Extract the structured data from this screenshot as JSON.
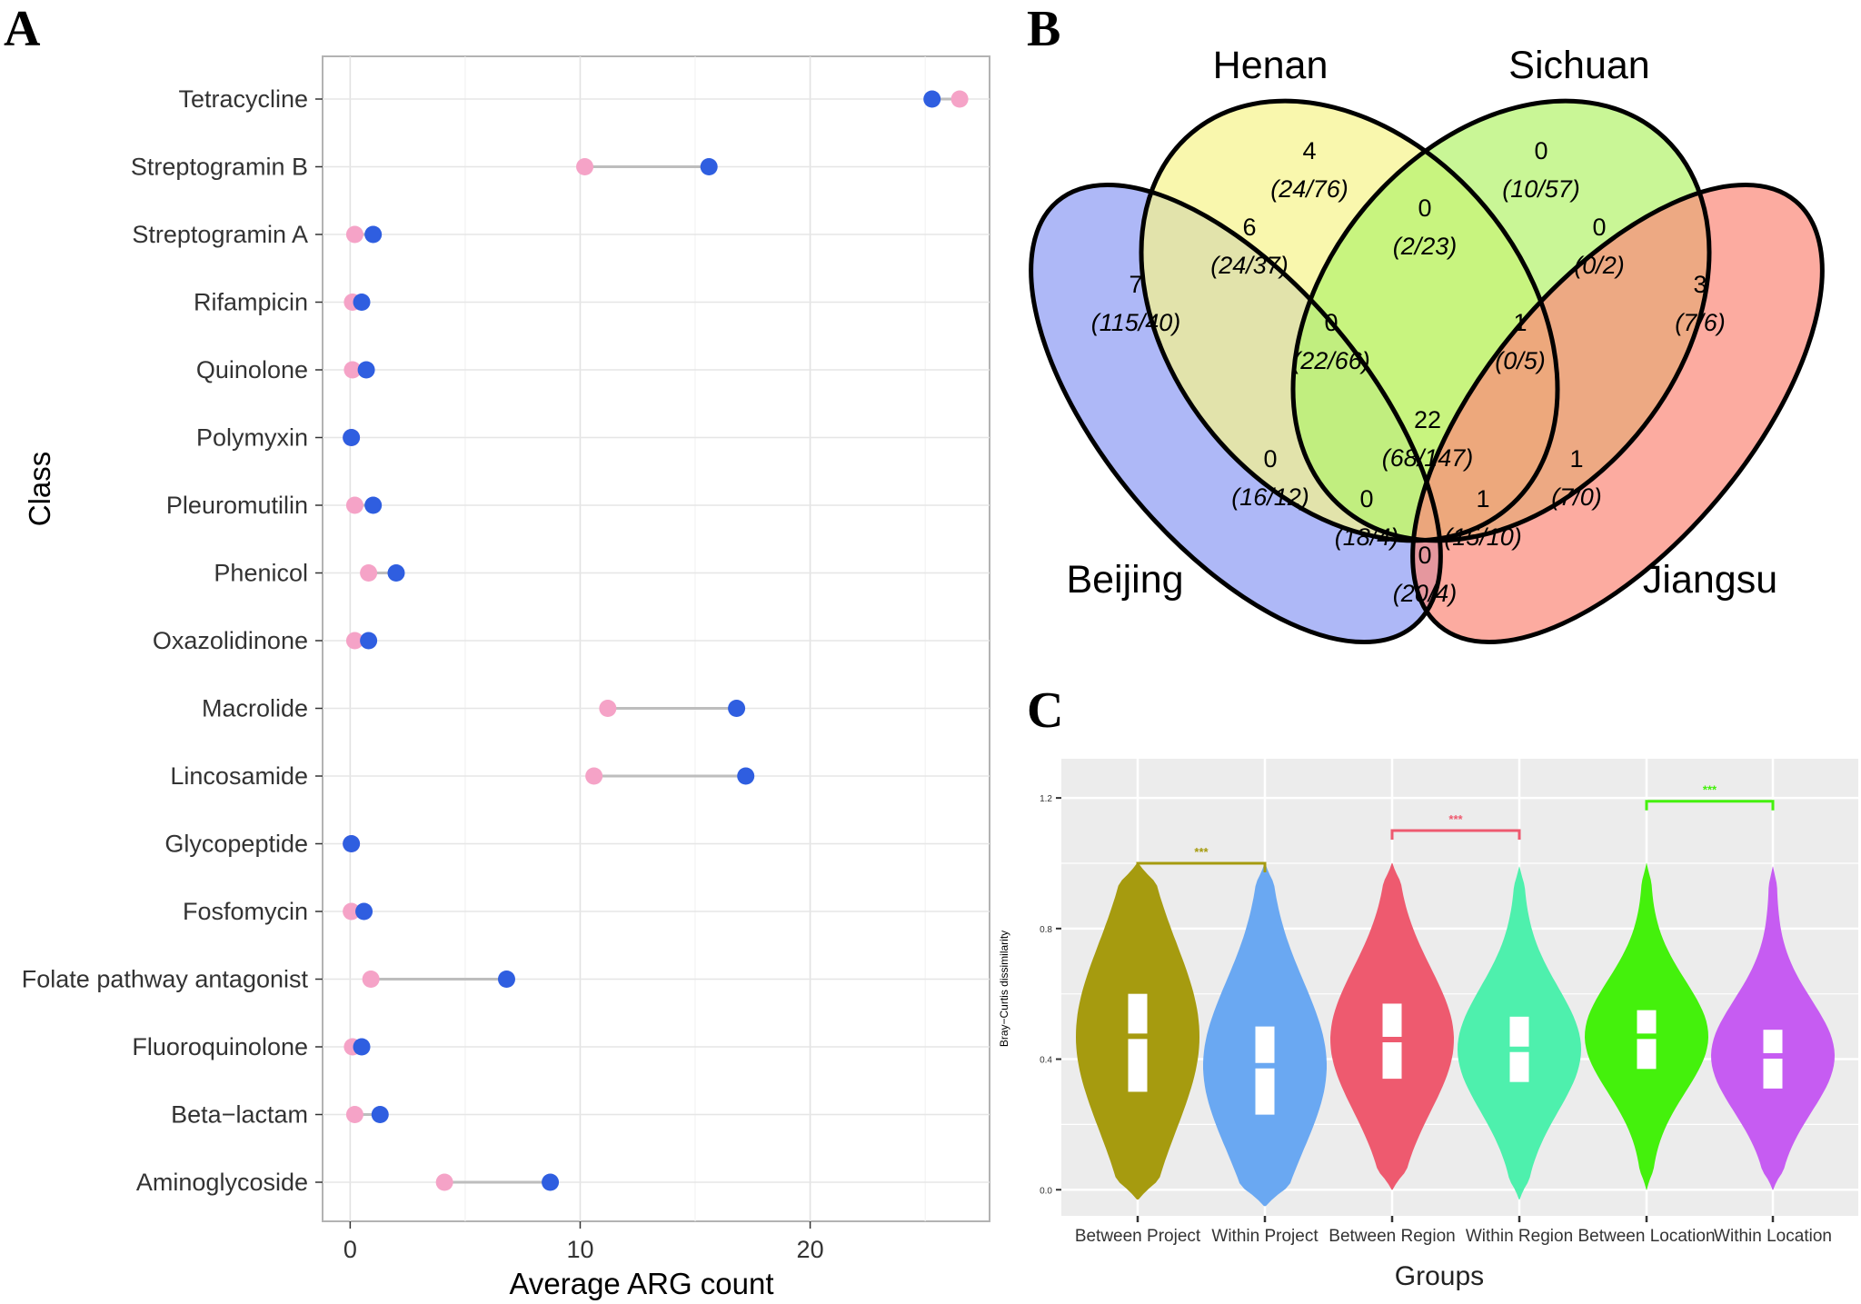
{
  "panels": {
    "a": "A",
    "b": "B",
    "c": "C"
  },
  "chart_data": [
    {
      "type": "scatter",
      "subtype": "dumbbell",
      "panel": "A",
      "xlabel": "Average ARG count",
      "ylabel": "Class",
      "xlim": [
        -1.2,
        27.8
      ],
      "xticks": [
        0,
        10,
        20
      ],
      "grid": true,
      "categories": [
        "Tetracycline",
        "Streptogramin B",
        "Streptogramin A",
        "Rifampicin",
        "Quinolone",
        "Polymyxin",
        "Pleuromutilin",
        "Phenicol",
        "Oxazolidinone",
        "Macrolide",
        "Lincosamide",
        "Glycopeptide",
        "Fosfomycin",
        "Folate pathway antagonist",
        "Fluoroquinolone",
        "Beta−lactam",
        "Aminoglycoside"
      ],
      "series": [
        {
          "name": "pink",
          "color": "#f5a3c7",
          "values": [
            26.5,
            10.2,
            0.2,
            0.1,
            0.1,
            0.05,
            0.2,
            0.8,
            0.2,
            11.2,
            10.6,
            0.05,
            0.05,
            0.9,
            0.1,
            0.2,
            4.1
          ]
        },
        {
          "name": "blue",
          "color": "#2f5ee0",
          "values": [
            25.3,
            15.6,
            1.0,
            0.5,
            0.7,
            0.05,
            1.0,
            2.0,
            0.8,
            16.8,
            17.2,
            0.05,
            0.6,
            6.8,
            0.5,
            1.3,
            8.7
          ]
        }
      ]
    },
    {
      "type": "venn",
      "panel": "B",
      "sets": [
        {
          "name": "Beijing",
          "color": "#8f9df4"
        },
        {
          "name": "Henan",
          "color": "#f7f48e"
        },
        {
          "name": "Sichuan",
          "color": "#b4f26e"
        },
        {
          "name": "Jiangsu",
          "color": "#fb8a7c"
        }
      ],
      "regions": [
        {
          "sets": "Beijing",
          "count": "7",
          "ratio": "(115/40)"
        },
        {
          "sets": "Henan",
          "count": "4",
          "ratio": "(24/76)"
        },
        {
          "sets": "Sichuan",
          "count": "0",
          "ratio": "(10/57)"
        },
        {
          "sets": "Jiangsu",
          "count": "3",
          "ratio": "(7/6)"
        },
        {
          "sets": "Beijing∩Henan",
          "count": "6",
          "ratio": "(24/37)"
        },
        {
          "sets": "Henan∩Sichuan",
          "count": "0",
          "ratio": "(2/23)"
        },
        {
          "sets": "Sichuan∩Jiangsu",
          "count": "0",
          "ratio": "(0/2)"
        },
        {
          "sets": "Beijing∩Henan∩Sichuan",
          "count": "0",
          "ratio": "(22/66)"
        },
        {
          "sets": "Henan∩Sichuan∩Jiangsu",
          "count": "1",
          "ratio": "(0/5)"
        },
        {
          "sets": "Beijing∩Henan∩Sichuan∩Jiangsu",
          "count": "22",
          "ratio": "(68/147)"
        },
        {
          "sets": "Beijing∩Sichuan",
          "count": "0",
          "ratio": "(16/12)"
        },
        {
          "sets": "Henan∩Jiangsu",
          "count": "1",
          "ratio": "(7/0)"
        },
        {
          "sets": "Beijing∩Sichuan∩Jiangsu",
          "count": "0",
          "ratio": "(18/4)"
        },
        {
          "sets": "Beijing∩Henan∩Jiangsu",
          "count": "1",
          "ratio": "(15/10)"
        },
        {
          "sets": "Beijing∩Jiangsu",
          "count": "0",
          "ratio": "(20/4)"
        }
      ]
    },
    {
      "type": "violin",
      "panel": "C",
      "xlabel": "Groups",
      "ylabel": "Bray−Curtis dissimilarity",
      "ylim": [
        -0.08,
        1.32
      ],
      "yticks": [
        "0.0",
        "0.4",
        "0.8",
        "1.2"
      ],
      "grid": true,
      "categories": [
        "Between Project",
        "Within Project",
        "Between Region",
        "Within Region",
        "Between Location",
        "Within Location"
      ],
      "colors": [
        "#a69b0f",
        "#6aa8f2",
        "#ee5a6f",
        "#4ef0ad",
        "#44f10c",
        "#c65cf2"
      ],
      "min": [
        -0.03,
        -0.05,
        0.0,
        -0.03,
        0.0,
        0.0
      ],
      "max": [
        1.0,
        1.0,
        1.0,
        0.99,
        1.0,
        0.99
      ],
      "q1": [
        0.3,
        0.23,
        0.34,
        0.33,
        0.37,
        0.31
      ],
      "median": [
        0.47,
        0.38,
        0.46,
        0.43,
        0.47,
        0.41
      ],
      "q3": [
        0.6,
        0.5,
        0.57,
        0.53,
        0.55,
        0.49
      ],
      "significance": [
        {
          "from": "Between Project",
          "to": "Within Project",
          "y": 1.0,
          "label": "***",
          "color": "#a69b0f"
        },
        {
          "from": "Between Region",
          "to": "Within Region",
          "y": 1.1,
          "label": "***",
          "color": "#ee5a6f"
        },
        {
          "from": "Between Location",
          "to": "Within Location",
          "y": 1.19,
          "label": "***",
          "color": "#44f10c"
        }
      ]
    }
  ]
}
